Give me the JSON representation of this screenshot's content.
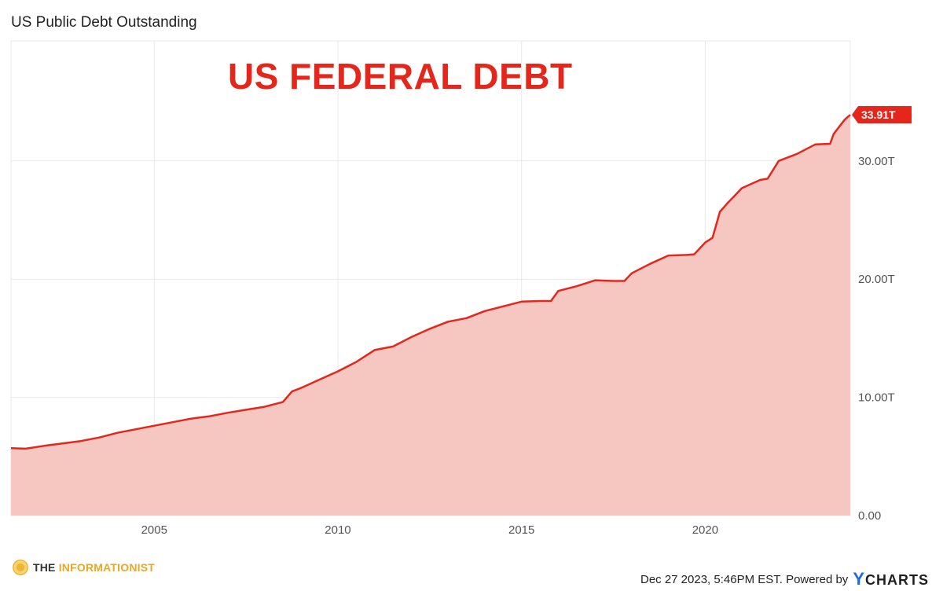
{
  "title": "US Public Debt Outstanding",
  "annotation": "US FEDERAL DEBT",
  "colors": {
    "line": "#e5261b",
    "area": "#f6c6c1",
    "grid": "#e9e9e9"
  },
  "footer": {
    "brand_mark_icon": "informationist-logo-icon",
    "brand_prefix": "THE",
    "brand_name": "INFORMATIONIST",
    "timestamp": "Dec 27 2023, 5:46PM EST. Powered by",
    "ycharts_y": "Y",
    "ycharts_rest": "CHARTS"
  },
  "chart_data": {
    "type": "area",
    "title": "US Public Debt Outstanding",
    "xlabel": "",
    "ylabel": "",
    "xlim": [
      2001.1,
      2023.95
    ],
    "ylim": [
      0,
      33.91
    ],
    "y_ticks": [
      0,
      10,
      20,
      30
    ],
    "y_tick_labels": [
      "0.00",
      "10.00T",
      "20.00T",
      "30.00T"
    ],
    "x_ticks": [
      2005,
      2010,
      2015,
      2020
    ],
    "x_tick_labels": [
      "2005",
      "2010",
      "2015",
      "2020"
    ],
    "grid": true,
    "last_value_label": "33.91T",
    "series": [
      {
        "values": [
          [
            2001.1,
            5.7
          ],
          [
            2001.5,
            5.66
          ],
          [
            2002.0,
            5.9
          ],
          [
            2002.5,
            6.1
          ],
          [
            2003.0,
            6.3
          ],
          [
            2003.5,
            6.6
          ],
          [
            2004.0,
            7.0
          ],
          [
            2004.5,
            7.3
          ],
          [
            2005.0,
            7.6
          ],
          [
            2005.5,
            7.9
          ],
          [
            2006.0,
            8.2
          ],
          [
            2006.5,
            8.4
          ],
          [
            2007.0,
            8.7
          ],
          [
            2007.5,
            8.95
          ],
          [
            2008.0,
            9.2
          ],
          [
            2008.5,
            9.6
          ],
          [
            2008.75,
            10.5
          ],
          [
            2009.0,
            10.8
          ],
          [
            2009.5,
            11.5
          ],
          [
            2010.0,
            12.2
          ],
          [
            2010.5,
            13.0
          ],
          [
            2011.0,
            14.0
          ],
          [
            2011.5,
            14.3
          ],
          [
            2012.0,
            15.1
          ],
          [
            2012.5,
            15.8
          ],
          [
            2013.0,
            16.4
          ],
          [
            2013.5,
            16.7
          ],
          [
            2014.0,
            17.3
          ],
          [
            2014.5,
            17.7
          ],
          [
            2015.0,
            18.1
          ],
          [
            2015.5,
            18.15
          ],
          [
            2015.8,
            18.15
          ],
          [
            2016.0,
            19.0
          ],
          [
            2016.5,
            19.4
          ],
          [
            2017.0,
            19.9
          ],
          [
            2017.5,
            19.85
          ],
          [
            2017.8,
            19.85
          ],
          [
            2018.0,
            20.5
          ],
          [
            2018.5,
            21.3
          ],
          [
            2019.0,
            22.0
          ],
          [
            2019.5,
            22.05
          ],
          [
            2019.7,
            22.1
          ],
          [
            2020.0,
            23.1
          ],
          [
            2020.2,
            23.5
          ],
          [
            2020.4,
            25.7
          ],
          [
            2020.6,
            26.4
          ],
          [
            2021.0,
            27.7
          ],
          [
            2021.5,
            28.4
          ],
          [
            2021.7,
            28.5
          ],
          [
            2022.0,
            30.0
          ],
          [
            2022.5,
            30.6
          ],
          [
            2023.0,
            31.4
          ],
          [
            2023.4,
            31.45
          ],
          [
            2023.5,
            32.3
          ],
          [
            2023.8,
            33.5
          ],
          [
            2023.95,
            33.91
          ]
        ]
      }
    ]
  }
}
